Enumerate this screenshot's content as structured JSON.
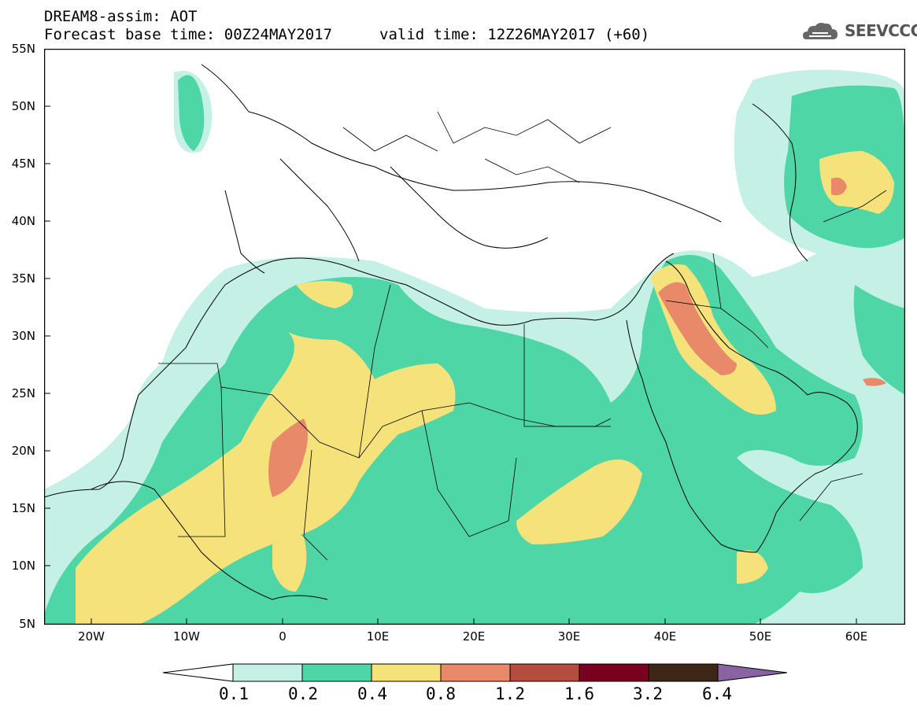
{
  "header": {
    "title": "DREAM8-assim: AOT",
    "base_time": "Forecast base time: 00Z24MAY2017",
    "valid_time": "valid time: 12Z26MAY2017 (+60)"
  },
  "logo": {
    "text": "SEEVCCC",
    "icon": "cloud-icon"
  },
  "map": {
    "extent": {
      "lon": [
        -25,
        65
      ],
      "lat": [
        5,
        55
      ]
    },
    "y_ticks": [
      "55N",
      "50N",
      "45N",
      "40N",
      "35N",
      "30N",
      "25N",
      "20N",
      "15N",
      "10N",
      "5N"
    ],
    "x_ticks": [
      "20W",
      "10W",
      "0",
      "10E",
      "20E",
      "30E",
      "40E",
      "50E",
      "60E"
    ]
  },
  "colorbar": {
    "labels": [
      "0.1",
      "0.2",
      "0.4",
      "0.8",
      "1.2",
      "1.6",
      "3.2",
      "6.4"
    ],
    "colors": [
      "#ffffff",
      "#c4f0e6",
      "#4fd6a6",
      "#f5e27a",
      "#e8896a",
      "#b44d3e",
      "#7a0020",
      "#3d2616",
      "#8a63a3"
    ]
  }
}
